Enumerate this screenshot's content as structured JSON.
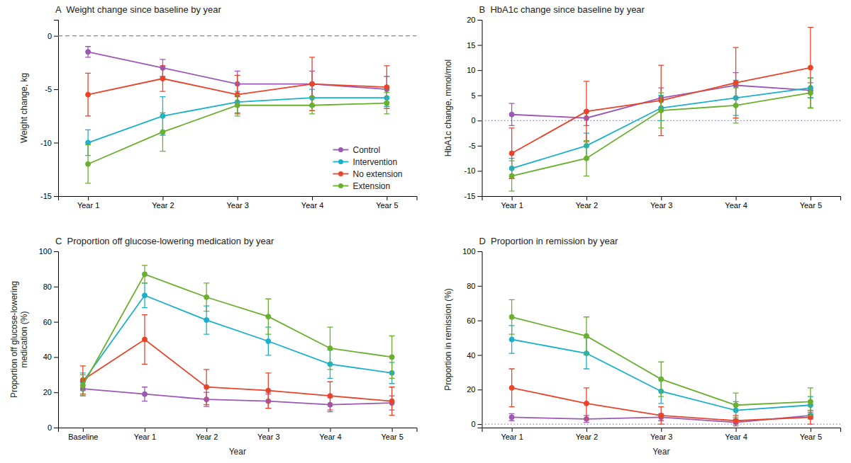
{
  "chart_data": [
    {
      "type": "line",
      "title": "A  Weight change since baseline by year",
      "y_label": "Weight change, kg",
      "categories": [
        "Year 1",
        "Year 2",
        "Year 3",
        "Year 4",
        "Year 5"
      ],
      "ylim": [
        -15,
        1.5
      ],
      "yticks": [
        0,
        -5,
        -10,
        -15
      ],
      "hline": {
        "value": 0,
        "color": "#888888",
        "line_style": "dashed"
      },
      "legend": "lower right",
      "series": [
        {
          "name": "Control",
          "color": "#9B59B6",
          "values": [
            -1.5,
            -3.0,
            -4.5,
            -4.5,
            -5.0
          ],
          "yerr_lo": [
            0.5,
            0.8,
            1.2,
            1.2,
            1.2
          ],
          "yerr_hi": [
            0.5,
            0.8,
            1.2,
            1.2,
            1.2
          ]
        },
        {
          "name": "Intervention",
          "color": "#1AB0CC",
          "values": [
            -10.0,
            -7.5,
            -6.2,
            -5.8,
            -5.8
          ],
          "yerr_lo": [
            1.2,
            1.8,
            1.0,
            0.8,
            0.8
          ],
          "yerr_hi": [
            1.2,
            1.8,
            1.0,
            0.8,
            0.8
          ]
        },
        {
          "name": "No extension",
          "color": "#E8442A",
          "values": [
            -5.5,
            -4.0,
            -5.5,
            -4.5,
            -4.8
          ],
          "yerr_lo": [
            2.0,
            1.2,
            1.8,
            2.5,
            2.0
          ],
          "yerr_hi": [
            2.0,
            1.2,
            1.8,
            2.5,
            2.0
          ]
        },
        {
          "name": "Extension",
          "color": "#6AAF2E",
          "values": [
            -12.0,
            -9.0,
            -6.5,
            -6.5,
            -6.3
          ],
          "yerr_lo": [
            1.8,
            1.8,
            1.0,
            0.8,
            1.0
          ],
          "yerr_hi": [
            1.8,
            1.8,
            1.0,
            0.8,
            1.0
          ]
        }
      ]
    },
    {
      "type": "line",
      "title": "B  HbA1c change since baseline by year",
      "y_label": "HbA1c change, mmol/mol",
      "categories": [
        "Year 1",
        "Year 2",
        "Year 3",
        "Year 4",
        "Year 5"
      ],
      "ylim": [
        -15,
        20
      ],
      "yticks": [
        -15,
        -10,
        -5,
        0,
        5,
        10,
        15,
        20
      ],
      "hline": {
        "value": 0,
        "color": "#8888AA",
        "line_style": "dotted"
      },
      "series": [
        {
          "color": "#9B59B6",
          "values": [
            1.2,
            0.5,
            4.5,
            7.0,
            6.0
          ],
          "yerr_lo": [
            2.2,
            1.5,
            2.0,
            2.5,
            1.5
          ],
          "yerr_hi": [
            2.2,
            1.5,
            2.0,
            2.5,
            1.5
          ]
        },
        {
          "color": "#1AB0CC",
          "values": [
            -9.5,
            -5.0,
            2.5,
            4.5,
            6.5
          ],
          "yerr_lo": [
            2.0,
            2.5,
            2.5,
            3.5,
            2.0
          ],
          "yerr_hi": [
            2.0,
            2.5,
            2.5,
            3.5,
            2.0
          ]
        },
        {
          "color": "#E8442A",
          "values": [
            -6.5,
            1.8,
            4.0,
            7.5,
            10.5
          ],
          "yerr_lo": [
            5.0,
            6.0,
            7.0,
            7.0,
            8.0
          ],
          "yerr_hi": [
            5.0,
            6.0,
            7.0,
            7.0,
            8.0
          ]
        },
        {
          "color": "#6AAF2E",
          "values": [
            -11.0,
            -7.5,
            2.0,
            3.0,
            5.5
          ],
          "yerr_lo": [
            3.0,
            3.5,
            3.5,
            3.5,
            3.0
          ],
          "yerr_hi": [
            3.0,
            3.5,
            3.5,
            3.5,
            3.0
          ]
        }
      ]
    },
    {
      "type": "line",
      "title": "C  Proportion off glucose-lowering medication by year",
      "y_label": "Proportion off glucose-lowering\nmedication (%)",
      "x_label": "Year",
      "categories": [
        "Baseline",
        "Year 1",
        "Year 2",
        "Year 3",
        "Year 4",
        "Year 5"
      ],
      "ylim": [
        0,
        100
      ],
      "yticks": [
        0,
        20,
        40,
        60,
        80,
        100
      ],
      "series": [
        {
          "color": "#9B59B6",
          "values": [
            22,
            19,
            16,
            15,
            13,
            14
          ],
          "yerr_lo": [
            4,
            4,
            4,
            4,
            4,
            4
          ],
          "yerr_hi": [
            4,
            4,
            4,
            4,
            4,
            4
          ]
        },
        {
          "color": "#1AB0CC",
          "values": [
            26,
            75,
            61,
            49,
            36,
            31
          ],
          "yerr_lo": [
            5,
            7,
            8,
            8,
            8,
            6
          ],
          "yerr_hi": [
            5,
            7,
            8,
            8,
            8,
            6
          ]
        },
        {
          "color": "#E8442A",
          "values": [
            27,
            50,
            23,
            21,
            18,
            15
          ],
          "yerr_lo": [
            8,
            14,
            10,
            10,
            8,
            8
          ],
          "yerr_hi": [
            8,
            14,
            10,
            10,
            8,
            8
          ]
        },
        {
          "color": "#6AAF2E",
          "values": [
            24,
            87,
            74,
            63,
            45,
            40
          ],
          "yerr_lo": [
            6,
            5,
            8,
            10,
            12,
            12
          ],
          "yerr_hi": [
            6,
            5,
            8,
            10,
            12,
            12
          ]
        }
      ]
    },
    {
      "type": "line",
      "title": "D  Proportion in remission by year",
      "y_label": "Proportion in remission (%)",
      "x_label": "Year",
      "categories": [
        "Year 1",
        "Year 2",
        "Year 3",
        "Year 4",
        "Year 5"
      ],
      "ylim": [
        -2,
        100
      ],
      "yticks": [
        0,
        20,
        40,
        60,
        80,
        100
      ],
      "hline": {
        "value": 0,
        "color": "#8888AA",
        "line_style": "dotted"
      },
      "series": [
        {
          "color": "#9B59B6",
          "values": [
            4,
            3,
            4,
            1,
            5
          ],
          "yerr_lo": [
            2,
            2,
            2,
            1,
            2
          ],
          "yerr_hi": [
            2,
            2,
            2,
            1,
            2
          ]
        },
        {
          "color": "#1AB0CC",
          "values": [
            49,
            41,
            19,
            8,
            11
          ],
          "yerr_lo": [
            8,
            9,
            7,
            5,
            5
          ],
          "yerr_hi": [
            8,
            9,
            7,
            5,
            5
          ]
        },
        {
          "color": "#E8442A",
          "values": [
            21,
            12,
            5,
            2,
            4
          ],
          "yerr_lo": [
            11,
            9,
            5,
            3,
            4
          ],
          "yerr_hi": [
            11,
            9,
            5,
            3,
            4
          ]
        },
        {
          "color": "#6AAF2E",
          "values": [
            62,
            51,
            26,
            11,
            13
          ],
          "yerr_lo": [
            10,
            11,
            10,
            7,
            8
          ],
          "yerr_hi": [
            10,
            11,
            10,
            7,
            8
          ]
        }
      ]
    }
  ]
}
